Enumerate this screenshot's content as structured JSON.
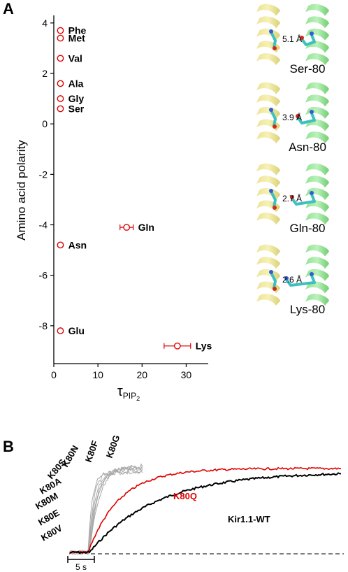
{
  "panel_a": {
    "letter": "A",
    "struct_labels": [
      "Ser-80",
      "Asn-80",
      "Gln-80",
      "Lys-80"
    ],
    "struct_distances": [
      "5.1 Å",
      "3.9 Å",
      "2.7 Å",
      "2.6 Å"
    ]
  },
  "panel_b": {
    "letter": "B",
    "scale_label": "5 s",
    "trace_labels": [
      "K80Q",
      "Kir1.1-WT"
    ],
    "mutant_labels": [
      "K80V",
      "K80E",
      "K80M",
      "K80A",
      "K80S",
      "K80N",
      "K80F",
      "K80G"
    ],
    "colors": {
      "k80q": "#e00000",
      "wt": "#000000",
      "fast": "#a8a8a8"
    }
  },
  "chart_data": [
    {
      "type": "scatter",
      "title": "",
      "xlabel": "τ",
      "xlabel_sub": "PIP",
      "xlabel_subsub": "2",
      "ylabel": "Amino acid polarity",
      "xlim": [
        0,
        35
      ],
      "ylim": [
        -9.5,
        4.3
      ],
      "xticks": [
        0,
        10,
        20,
        30
      ],
      "yticks": [
        4,
        2,
        0,
        -2,
        -4,
        -6,
        -8
      ],
      "marker_color": "#e00000",
      "points": [
        {
          "label": "Phe",
          "x": 1.5,
          "y": 3.7,
          "xerr": 0.3
        },
        {
          "label": "Met",
          "x": 1.5,
          "y": 3.4,
          "xerr": 0.3
        },
        {
          "label": "Val",
          "x": 1.5,
          "y": 2.6,
          "xerr": 0.3
        },
        {
          "label": "Ala",
          "x": 1.5,
          "y": 1.6,
          "xerr": 0.3
        },
        {
          "label": "Gly",
          "x": 1.5,
          "y": 1.0,
          "xerr": 0.3
        },
        {
          "label": "Ser",
          "x": 1.5,
          "y": 0.6,
          "xerr": 0.2
        },
        {
          "label": "Gln",
          "x": 16.5,
          "y": -4.1,
          "xerr": 1.5
        },
        {
          "label": "Asn",
          "x": 1.5,
          "y": -4.8,
          "xerr": 0.3
        },
        {
          "label": "Glu",
          "x": 1.5,
          "y": -8.2,
          "xerr": 0.3
        },
        {
          "label": "Lys",
          "x": 28.0,
          "y": -8.8,
          "xerr": 3.0
        }
      ]
    }
  ]
}
